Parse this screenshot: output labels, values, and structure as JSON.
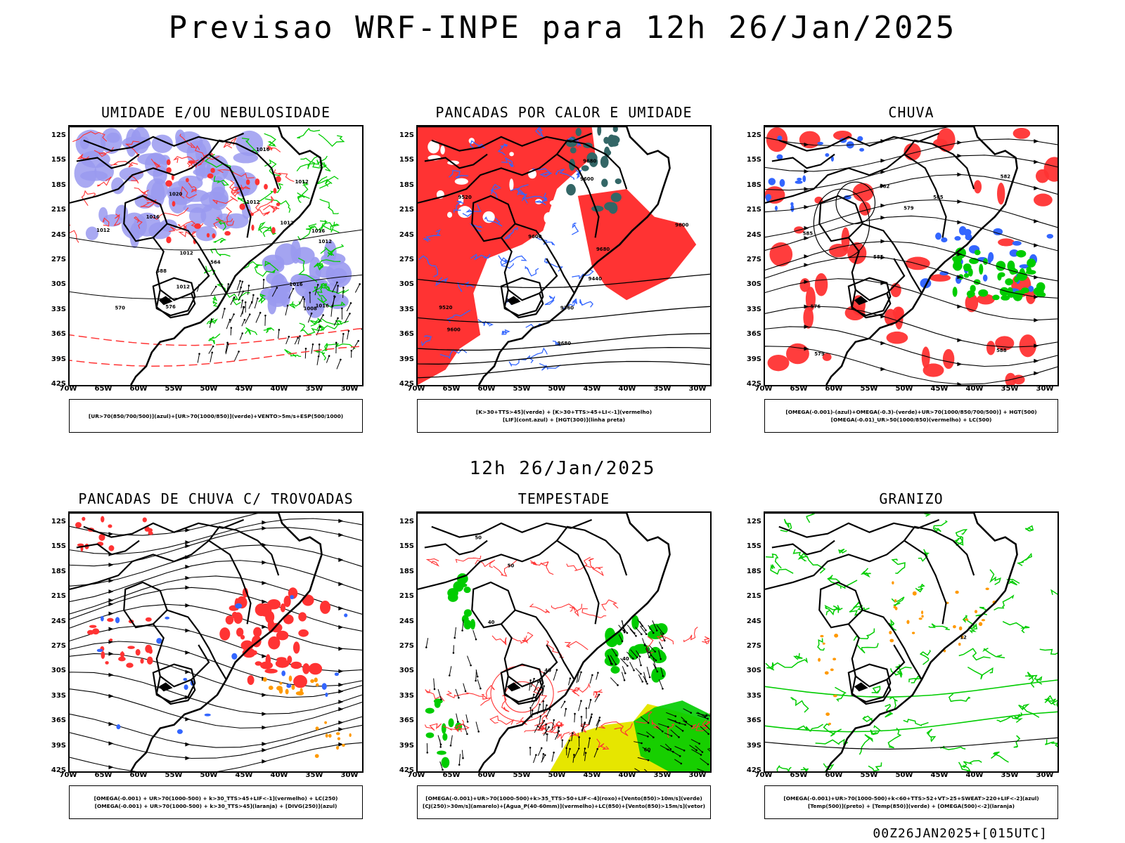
{
  "header": {
    "title": "Previsao WRF-INPE  para 12h 26/Jan/2025"
  },
  "mid_header": {
    "title": "12h 26/Jan/2025"
  },
  "footer": {
    "run": "00Z26JAN2025+[015UTC]"
  },
  "axes": {
    "lat_labels": [
      "12S",
      "15S",
      "18S",
      "21S",
      "24S",
      "27S",
      "30S",
      "33S",
      "36S",
      "39S",
      "42S"
    ],
    "lon_labels": [
      "70W",
      "65W",
      "60W",
      "55W",
      "50W",
      "45W",
      "40W",
      "35W",
      "30W"
    ]
  },
  "colors": {
    "blue_fill": "#9a9af0",
    "green": "#00cc00",
    "red": "#ff3333",
    "blue_line": "#3366ff",
    "orange": "#ff9900",
    "yellow": "#e6e600",
    "teal": "#336666"
  },
  "panels": [
    {
      "id": "umidade",
      "title": "UMIDADE E/OU NEBULOSIDADE",
      "legend": [
        "[UR>70(850/700/500)](azul)+[UR>70(1000/850)](verde)+VENTO>5m/s+ESP(500/1000)"
      ],
      "contour_labels": [
        "1020",
        "1016",
        "1012",
        "1012",
        "1012",
        "1016",
        "1012",
        "1016",
        "1008",
        "1012",
        "1016",
        "1016",
        "1012",
        "576",
        "570",
        "564",
        "588",
        "1012"
      ]
    },
    {
      "id": "pancadas_calor",
      "title": "PANCADAS POR CALOR E UMIDADE",
      "legend": [
        "[K>30+TTS>45](verde) + [K>30+TTS>45+LI<-1](vermelho)",
        "[LIF](cont.azul) + [HGT(300)](linha preta)"
      ],
      "contour_labels": [
        "9680",
        "9680",
        "9600",
        "9680",
        "9600",
        "9600",
        "9600",
        "9600",
        "9520",
        "9520",
        "9440",
        "9360"
      ]
    },
    {
      "id": "chuva",
      "title": "CHUVA",
      "legend": [
        "[OMEGA(-0.001)-(azul)+OMEGA(-0.3)-(verde)+UR>70(1000/850/700/500)] + HGT(500)",
        "[OMEGA(-0.01)_UR>50(1000/850)(vermelho) + LC(500)"
      ],
      "contour_labels": [
        "588",
        "585",
        "582",
        "585",
        "585",
        "579",
        "582",
        "579",
        "576"
      ]
    },
    {
      "id": "trovoadas",
      "title": "PANCADAS DE CHUVA C/ TROVOADAS",
      "legend": [
        "[OMEGA(-0.001) + UR>70(1000-500) + k>30_TTS>45+LIF<-1](vermelho) + LC(250)",
        "[OMEGA(-0.001) + UR>70(1000-500) + k>30_TTS>45](laranja) + [DIVG(250)](azul)"
      ],
      "contour_labels": []
    },
    {
      "id": "tempestade",
      "title": "TEMPESTADE",
      "legend": [
        "[OMEGA(-0.001)+UR>70(1000-500)+k>35_TTS>50+LIF<-4](roxo)+[Vento(850)>10m/s](verde)",
        "[CJ(250)>30m/s](amarelo)+[Agua_P(40-60mm)](vermelho)+LC(850)+[Vento(850)>15m/s](vetor)"
      ],
      "contour_labels": [
        "40",
        "40",
        "50",
        "40",
        "60",
        "50"
      ]
    },
    {
      "id": "granizo",
      "title": "GRANIZO",
      "legend": [
        "[OMEGA(-0.001)+UR>70(1000-500)+k<60+TTS>52+VT>25+SWEAT>220+LIF<-2](azul)",
        "[Temp(500)](preto) + [Temp(850)](verde) + [OMEGA(500)<-2](laranja)"
      ],
      "contour_labels": [
        "-12"
      ]
    }
  ]
}
